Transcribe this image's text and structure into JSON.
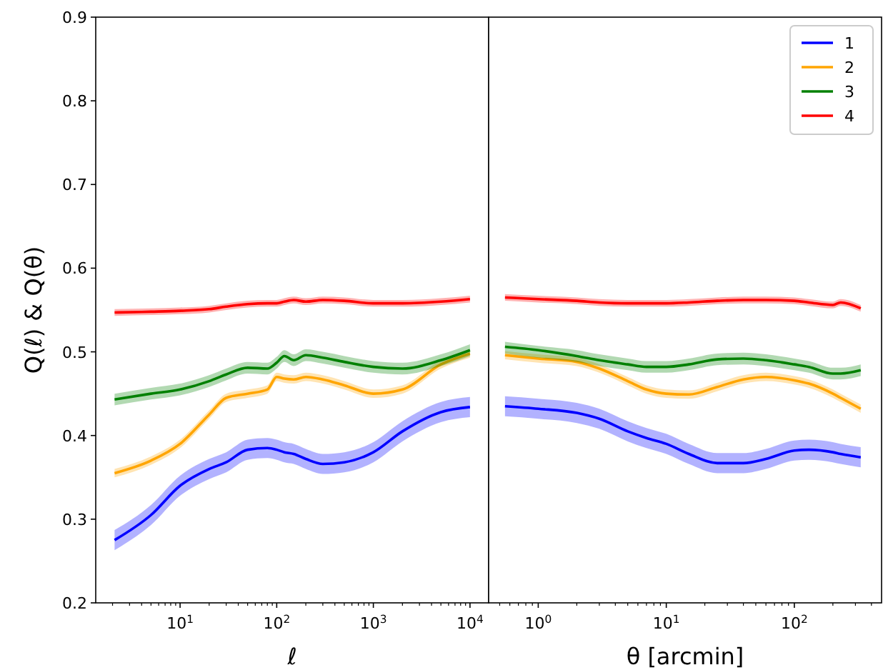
{
  "chart_data": [
    {
      "type": "line",
      "xlabel": "ℓ",
      "ylabel": "Q(ℓ) & Q(θ)",
      "log": "x",
      "xlim": [
        1.34,
        15600
      ],
      "xticks": [
        {
          "value": 10,
          "label": "10$^{1}$"
        },
        {
          "value": 100,
          "label": "10$^{2}$"
        },
        {
          "value": 1000,
          "label": "10$^{3}$"
        },
        {
          "value": 10000,
          "label": "10$^{4}$"
        }
      ],
      "ylim": [
        0.2,
        0.9
      ],
      "yticks": [
        {
          "value": 0.2,
          "label": "0.2"
        },
        {
          "value": 0.3,
          "label": "0.3"
        },
        {
          "value": 0.4,
          "label": "0.4"
        },
        {
          "value": 0.5,
          "label": "0.5"
        },
        {
          "value": 0.6,
          "label": "0.6"
        },
        {
          "value": 0.7,
          "label": "0.7"
        },
        {
          "value": 0.8,
          "label": "0.8"
        },
        {
          "value": 0.9,
          "label": "0.9"
        }
      ],
      "grid": false,
      "legend": false,
      "x": [
        2.1,
        5,
        10,
        20,
        30,
        50,
        80,
        100,
        120,
        150,
        200,
        300,
        500,
        1000,
        2000,
        5000,
        10000
      ],
      "series": [
        {
          "color": "#0000ff",
          "values": [
            0.275,
            0.305,
            0.34,
            0.36,
            0.368,
            0.383,
            0.385,
            0.383,
            0.38,
            0.378,
            0.372,
            0.366,
            0.368,
            0.38,
            0.405,
            0.428,
            0.434
          ],
          "lower": [
            0.263,
            0.293,
            0.328,
            0.348,
            0.356,
            0.371,
            0.373,
            0.371,
            0.368,
            0.366,
            0.36,
            0.354,
            0.356,
            0.368,
            0.393,
            0.416,
            0.422
          ],
          "upper": [
            0.287,
            0.317,
            0.352,
            0.372,
            0.38,
            0.395,
            0.397,
            0.395,
            0.392,
            0.39,
            0.384,
            0.378,
            0.38,
            0.392,
            0.417,
            0.44,
            0.446
          ]
        },
        {
          "color": "#ffa500",
          "values": [
            0.355,
            0.37,
            0.39,
            0.425,
            0.445,
            0.45,
            0.455,
            0.47,
            0.468,
            0.467,
            0.47,
            0.467,
            0.46,
            0.45,
            0.455,
            0.485,
            0.498
          ],
          "lower": [
            0.35,
            0.365,
            0.385,
            0.42,
            0.44,
            0.445,
            0.45,
            0.465,
            0.463,
            0.462,
            0.465,
            0.462,
            0.455,
            0.445,
            0.45,
            0.48,
            0.493
          ],
          "upper": [
            0.36,
            0.375,
            0.395,
            0.43,
            0.45,
            0.455,
            0.46,
            0.475,
            0.473,
            0.472,
            0.475,
            0.472,
            0.465,
            0.455,
            0.46,
            0.49,
            0.503
          ]
        },
        {
          "color": "#008000",
          "values": [
            0.443,
            0.45,
            0.455,
            0.465,
            0.473,
            0.481,
            0.48,
            0.487,
            0.495,
            0.49,
            0.496,
            0.493,
            0.488,
            0.482,
            0.48,
            0.49,
            0.502
          ],
          "lower": [
            0.436,
            0.443,
            0.448,
            0.458,
            0.466,
            0.474,
            0.473,
            0.48,
            0.488,
            0.483,
            0.489,
            0.486,
            0.481,
            0.475,
            0.473,
            0.483,
            0.495
          ],
          "upper": [
            0.45,
            0.457,
            0.462,
            0.472,
            0.48,
            0.488,
            0.487,
            0.494,
            0.502,
            0.497,
            0.503,
            0.5,
            0.495,
            0.489,
            0.487,
            0.497,
            0.509
          ]
        },
        {
          "color": "#ff0000",
          "values": [
            0.547,
            0.548,
            0.549,
            0.551,
            0.554,
            0.557,
            0.558,
            0.558,
            0.56,
            0.562,
            0.56,
            0.562,
            0.561,
            0.558,
            0.558,
            0.56,
            0.563
          ],
          "lower": [
            0.543,
            0.544,
            0.545,
            0.547,
            0.55,
            0.553,
            0.554,
            0.554,
            0.556,
            0.558,
            0.556,
            0.558,
            0.557,
            0.554,
            0.554,
            0.556,
            0.559
          ],
          "upper": [
            0.551,
            0.552,
            0.553,
            0.555,
            0.558,
            0.561,
            0.562,
            0.562,
            0.564,
            0.566,
            0.564,
            0.566,
            0.565,
            0.562,
            0.562,
            0.564,
            0.567
          ]
        }
      ]
    },
    {
      "type": "line",
      "xlabel": "θ [arcmin]",
      "log": "x",
      "xlim": [
        0.41,
        480
      ],
      "xticks": [
        {
          "value": 1,
          "label": "10$^{0}$"
        },
        {
          "value": 10,
          "label": "10$^{1}$"
        },
        {
          "value": 100,
          "label": "10$^{2}$"
        }
      ],
      "ylim": [
        0.2,
        0.9
      ],
      "tick_labels": "x",
      "grid": false,
      "legend": "top right",
      "x": [
        0.55,
        1,
        2,
        3,
        5,
        7,
        10,
        15,
        25,
        40,
        60,
        100,
        130,
        200,
        230,
        330
      ],
      "series": [
        {
          "name": "1",
          "color": "#0000ff",
          "values": [
            0.435,
            0.432,
            0.427,
            0.42,
            0.405,
            0.397,
            0.39,
            0.378,
            0.367,
            0.367,
            0.372,
            0.382,
            0.383,
            0.38,
            0.378,
            0.374
          ],
          "lower": [
            0.423,
            0.42,
            0.415,
            0.408,
            0.393,
            0.385,
            0.378,
            0.366,
            0.355,
            0.355,
            0.36,
            0.37,
            0.371,
            0.368,
            0.366,
            0.362
          ],
          "upper": [
            0.447,
            0.444,
            0.439,
            0.432,
            0.417,
            0.409,
            0.402,
            0.39,
            0.379,
            0.379,
            0.384,
            0.394,
            0.395,
            0.392,
            0.39,
            0.386
          ]
        },
        {
          "name": "2",
          "color": "#ffa500",
          "values": [
            0.496,
            0.492,
            0.488,
            0.48,
            0.465,
            0.455,
            0.45,
            0.449,
            0.458,
            0.467,
            0.47,
            0.466,
            0.462,
            0.45,
            0.445,
            0.432
          ],
          "lower": [
            0.491,
            0.487,
            0.483,
            0.475,
            0.46,
            0.45,
            0.445,
            0.444,
            0.453,
            0.462,
            0.465,
            0.461,
            0.457,
            0.445,
            0.44,
            0.427
          ],
          "upper": [
            0.501,
            0.497,
            0.493,
            0.485,
            0.47,
            0.46,
            0.455,
            0.454,
            0.463,
            0.472,
            0.475,
            0.471,
            0.467,
            0.455,
            0.45,
            0.437
          ]
        },
        {
          "name": "3",
          "color": "#008000",
          "values": [
            0.506,
            0.502,
            0.495,
            0.49,
            0.485,
            0.482,
            0.482,
            0.485,
            0.491,
            0.492,
            0.49,
            0.485,
            0.482,
            0.474,
            0.474,
            0.478
          ],
          "lower": [
            0.498,
            0.493,
            0.488,
            0.483,
            0.478,
            0.475,
            0.475,
            0.478,
            0.484,
            0.485,
            0.483,
            0.478,
            0.475,
            0.467,
            0.467,
            0.471
          ],
          "upper": [
            0.512,
            0.507,
            0.502,
            0.497,
            0.492,
            0.489,
            0.489,
            0.492,
            0.498,
            0.499,
            0.497,
            0.492,
            0.489,
            0.481,
            0.481,
            0.485
          ]
        },
        {
          "name": "4",
          "color": "#ff0000",
          "values": [
            0.565,
            0.563,
            0.561,
            0.559,
            0.558,
            0.558,
            0.558,
            0.559,
            0.561,
            0.562,
            0.562,
            0.561,
            0.559,
            0.556,
            0.559,
            0.552
          ],
          "lower": [
            0.561,
            0.559,
            0.557,
            0.555,
            0.554,
            0.554,
            0.554,
            0.555,
            0.557,
            0.558,
            0.558,
            0.557,
            0.555,
            0.552,
            0.555,
            0.548
          ],
          "upper": [
            0.569,
            0.567,
            0.565,
            0.563,
            0.562,
            0.562,
            0.562,
            0.563,
            0.565,
            0.566,
            0.566,
            0.565,
            0.563,
            0.56,
            0.563,
            0.556
          ]
        }
      ]
    }
  ]
}
